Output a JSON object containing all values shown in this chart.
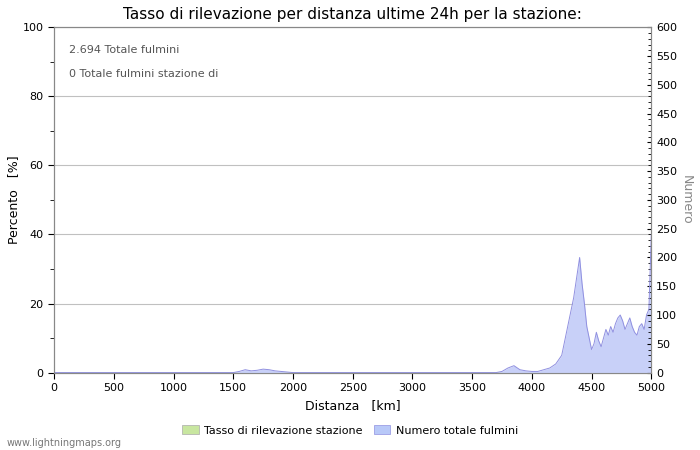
{
  "title": "Tasso di rilevazione per distanza ultime 24h per la stazione:",
  "xlabel": "Distanza   [km]",
  "ylabel_left": "Percento   [%]",
  "ylabel_right": "Numero",
  "annotation_line1": "2.694 Totale fulmini",
  "annotation_line2": "0 Totale fulmini stazione di",
  "xlim": [
    0,
    5000
  ],
  "ylim_left": [
    0,
    100
  ],
  "ylim_right": [
    0,
    600
  ],
  "yticks_left": [
    0,
    20,
    40,
    60,
    80,
    100
  ],
  "yticks_right": [
    0,
    50,
    100,
    150,
    200,
    250,
    300,
    350,
    400,
    450,
    500,
    550,
    600
  ],
  "xticks": [
    0,
    500,
    1000,
    1500,
    2000,
    2500,
    3000,
    3500,
    4000,
    4500,
    5000
  ],
  "legend_labels": [
    "Tasso di rilevazione stazione",
    "Numero totale fulmini"
  ],
  "legend_colors": [
    "#c8e6a0",
    "#b8c8f8"
  ],
  "watermark": "www.lightningmaps.org",
  "background_color": "#ffffff",
  "grid_color": "#c0c0c0",
  "line_color": "#9090e0",
  "fill_color": "#c8d0f8",
  "title_fontsize": 11,
  "label_fontsize": 9,
  "tick_fontsize": 8,
  "annotation_fontsize": 8,
  "legend_fontsize": 8,
  "watermark_fontsize": 7,
  "minor_yticks_left": [
    10,
    30,
    50,
    70,
    90
  ],
  "x_data": [
    0,
    100,
    200,
    300,
    400,
    500,
    600,
    700,
    800,
    900,
    1000,
    1100,
    1200,
    1300,
    1400,
    1500,
    1550,
    1600,
    1650,
    1700,
    1750,
    1800,
    1850,
    1900,
    1950,
    2000,
    2100,
    2200,
    2300,
    2400,
    2500,
    2600,
    2700,
    2800,
    2900,
    3000,
    3100,
    3200,
    3300,
    3400,
    3500,
    3600,
    3700,
    3750,
    3800,
    3850,
    3900,
    3950,
    4000,
    4050,
    4100,
    4150,
    4200,
    4250,
    4300,
    4350,
    4400,
    4420,
    4440,
    4460,
    4480,
    4500,
    4520,
    4540,
    4560,
    4580,
    4600,
    4620,
    4640,
    4660,
    4680,
    4700,
    4720,
    4740,
    4760,
    4780,
    4800,
    4820,
    4840,
    4860,
    4880,
    4900,
    4920,
    4940,
    4960,
    4980,
    5000
  ],
  "y_numero": [
    0,
    0,
    0,
    0,
    0,
    0,
    0,
    0,
    0,
    0,
    0,
    0,
    0,
    0,
    0,
    0,
    2,
    5,
    3,
    4,
    6,
    5,
    3,
    2,
    1,
    0,
    0,
    0,
    0,
    0,
    0,
    0,
    0,
    0,
    0,
    0,
    0,
    0,
    0,
    0,
    0,
    0,
    0,
    2,
    8,
    12,
    5,
    3,
    2,
    2,
    5,
    8,
    15,
    30,
    80,
    130,
    200,
    155,
    120,
    80,
    60,
    40,
    50,
    70,
    55,
    45,
    60,
    75,
    65,
    80,
    70,
    85,
    95,
    100,
    90,
    75,
    85,
    95,
    80,
    70,
    65,
    80,
    85,
    75,
    100,
    110,
    240
  ]
}
